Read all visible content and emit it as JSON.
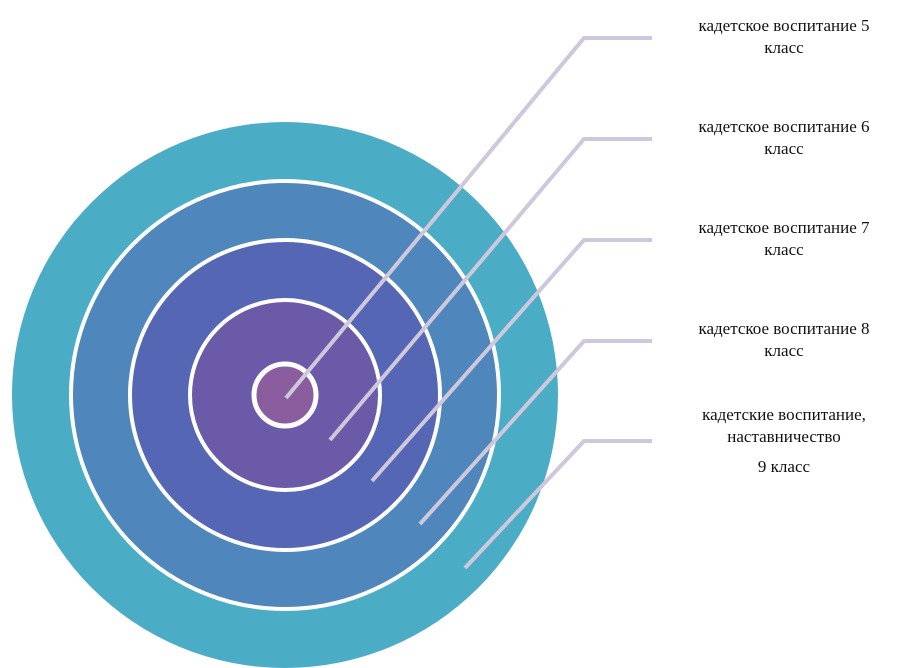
{
  "diagram": {
    "rings": [
      {
        "name": "ring-outer",
        "color": "#4bacc6"
      },
      {
        "name": "ring-2",
        "color": "#4f86bb"
      },
      {
        "name": "ring-3",
        "color": "#5566b4"
      },
      {
        "name": "ring-4",
        "color": "#6a5aa8"
      },
      {
        "name": "ring-center",
        "color": "#8a5e9e"
      }
    ],
    "leader_color": "#cfc8dc",
    "ring_separator_color": "#ffffff",
    "labels": [
      {
        "line1": "кадетское воспитание 5",
        "line2": "класс"
      },
      {
        "line1": "кадетское воспитание 6",
        "line2": "класс"
      },
      {
        "line1": "кадетское воспитание 7",
        "line2": "класс"
      },
      {
        "line1": "кадетское воспитание 8",
        "line2": "класс"
      },
      {
        "line1": "кадетские воспитание,",
        "line2": "наставничество",
        "line3": "9 класс"
      }
    ]
  }
}
